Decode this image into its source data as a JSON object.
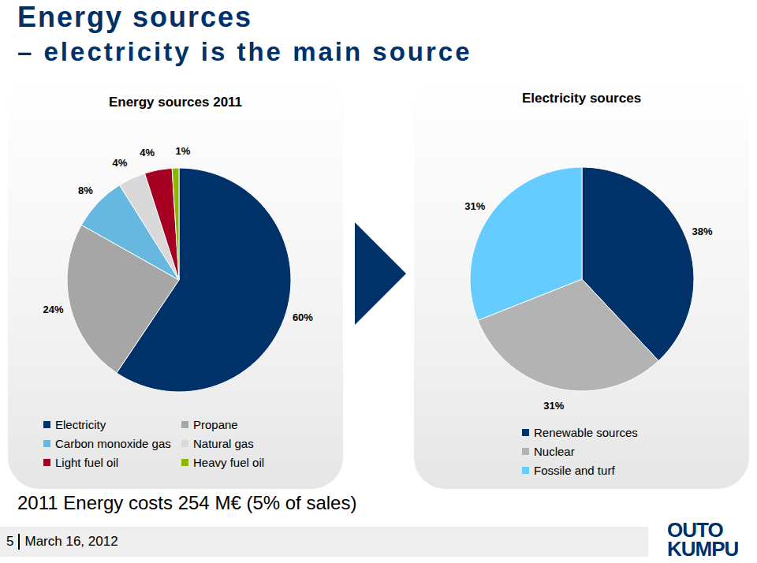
{
  "title": "Energy sources",
  "subtitle": "– electricity is the main source",
  "chart_data": [
    {
      "type": "pie",
      "title": "Energy sources 2011",
      "categories": [
        "Electricity",
        "Propane",
        "Carbon monoxide gas",
        "Natural gas",
        "Light fuel oil",
        "Heavy fuel oil"
      ],
      "values": [
        60,
        24,
        8,
        4,
        4,
        1
      ],
      "value_labels": [
        "60%",
        "24%",
        "8%",
        "4%",
        "4%",
        "1%"
      ],
      "colors": [
        "#003169",
        "#a6a6a6",
        "#66b8e0",
        "#d9d9d9",
        "#a50021",
        "#8db600"
      ],
      "data_labels": true,
      "legend": "bottom"
    },
    {
      "type": "pie",
      "title": "Electricity sources",
      "categories": [
        "Renewable sources",
        "Nuclear",
        "Fossile and turf"
      ],
      "values": [
        38,
        31,
        31
      ],
      "value_labels": [
        "38%",
        "31%",
        "31%"
      ],
      "colors": [
        "#003169",
        "#b3b3b3",
        "#66ccff"
      ],
      "data_labels": true,
      "legend": "bottom"
    }
  ],
  "footer": "2011 Energy costs 254 M€ (5% of sales)",
  "page": {
    "number": 5,
    "date": "March 16, 2012"
  },
  "logo": [
    "OUTO",
    "KUMPU"
  ]
}
